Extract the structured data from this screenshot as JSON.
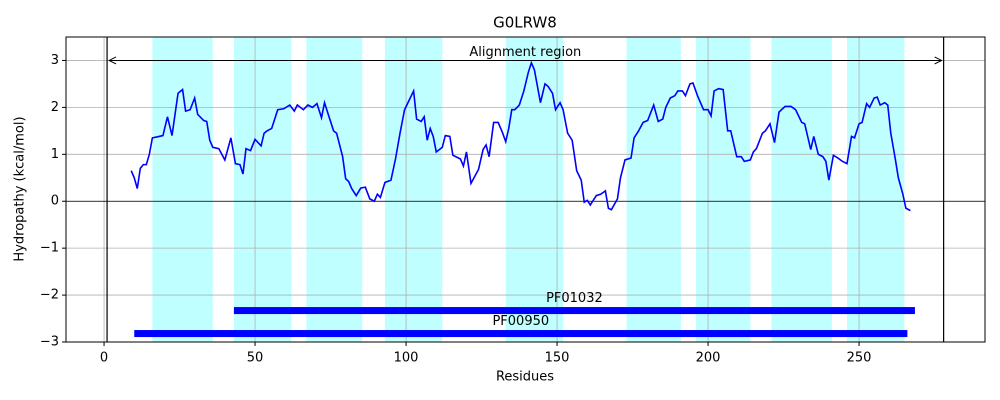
{
  "chart_data": {
    "type": "line",
    "title": "G0LRW8",
    "xlabel": "Residues",
    "ylabel": "Hydropathy (kcal/mol)",
    "color": "#0000ff",
    "region_color": "#bfffff",
    "grid": true,
    "xlim": [
      -12.6,
      291.7
    ],
    "ylim": [
      -3,
      3.5
    ],
    "xticks": [
      0,
      50,
      100,
      150,
      200,
      250
    ],
    "yticks": [
      {
        "value": -3,
        "label": "−3"
      },
      {
        "value": -2,
        "label": "−2"
      },
      {
        "value": -1,
        "label": "−1"
      },
      0,
      1,
      2,
      3
    ],
    "baseline": 0,
    "regions": [
      [
        16,
        36
      ],
      [
        43,
        62
      ],
      [
        67,
        85.5
      ],
      [
        93,
        112
      ],
      [
        133,
        152
      ],
      [
        173,
        191
      ],
      [
        196,
        214
      ],
      [
        221,
        241
      ],
      [
        246,
        265
      ]
    ],
    "alignment": {
      "label": "Alignment region",
      "start": 1,
      "end": 278,
      "y": 3
    },
    "domains": [
      {
        "name": "PF01032",
        "start": 43,
        "end": 268.5,
        "y": -2.33
      },
      {
        "name": "PF00950",
        "start": 10,
        "end": 266,
        "y": -2.82
      }
    ],
    "domain_color": "#0000ff",
    "x": [
      9,
      10,
      11,
      12,
      13,
      14,
      15,
      16,
      17.5,
      19.5,
      21,
      22.5,
      24.5,
      26,
      27,
      28.5,
      30,
      31,
      33,
      34,
      35,
      36,
      38,
      40,
      42,
      43.5,
      45,
      46,
      47,
      48.5,
      50,
      52,
      53,
      54,
      55.5,
      57.5,
      59.5,
      61.5,
      63,
      64,
      66,
      67.5,
      69,
      70.5,
      72,
      73,
      74,
      76,
      77,
      79,
      80,
      81,
      82,
      83.5,
      85,
      86.5,
      88,
      89.5,
      90.5,
      91.5,
      93,
      95,
      96.5,
      98,
      99.5,
      101,
      102.5,
      103.5,
      105,
      106,
      107,
      108,
      109,
      110,
      112,
      113,
      114.5,
      115.5,
      118,
      119,
      120,
      121.5,
      124,
      125.5,
      126.5,
      127.5,
      129,
      130.5,
      132,
      133,
      134,
      135,
      136,
      137.5,
      139,
      140.5,
      141.5,
      142.5,
      144.5,
      146,
      147,
      148.5,
      149.5,
      151,
      152,
      153.5,
      155,
      156.5,
      158,
      159,
      160,
      161,
      163,
      164.5,
      166,
      167,
      168,
      170,
      171,
      172.5,
      174.5,
      175.5,
      177,
      178.5,
      180,
      182,
      183.5,
      185,
      186,
      187.5,
      189,
      190,
      191.5,
      192.5,
      194,
      195,
      196.5,
      198.5,
      200,
      201,
      202,
      203.5,
      205,
      206.5,
      207.5,
      209.5,
      211,
      212,
      214,
      215,
      216,
      218,
      219,
      220.5,
      222,
      223.5,
      225.5,
      227.5,
      229,
      231,
      232,
      234,
      235,
      236.5,
      238,
      239,
      240,
      241.5,
      243,
      244.5,
      246,
      247.5,
      248.5,
      250,
      251,
      252.5,
      253.5,
      255,
      256,
      257,
      258.5,
      259.5,
      260.5,
      262,
      263,
      264.5,
      265.5,
      267
    ],
    "values": [
      0.65,
      0.5,
      0.27,
      0.7,
      0.78,
      0.78,
      1.0,
      1.35,
      1.37,
      1.4,
      1.8,
      1.4,
      2.3,
      2.38,
      1.92,
      1.95,
      2.2,
      1.85,
      1.72,
      1.7,
      1.3,
      1.15,
      1.12,
      0.88,
      1.35,
      0.8,
      0.78,
      0.58,
      1.12,
      1.08,
      1.32,
      1.18,
      1.45,
      1.5,
      1.55,
      1.95,
      1.97,
      2.05,
      1.92,
      2.05,
      1.95,
      2.05,
      2.0,
      2.08,
      1.78,
      2.1,
      1.9,
      1.5,
      1.45,
      0.95,
      0.48,
      0.42,
      0.27,
      0.12,
      0.28,
      0.3,
      0.05,
      0,
      0.15,
      0.08,
      0.4,
      0.45,
      0.9,
      1.45,
      1.95,
      2.15,
      2.35,
      1.75,
      1.7,
      1.8,
      1.3,
      1.55,
      1.38,
      1.05,
      1.15,
      1.4,
      1.38,
      0.98,
      0.9,
      0.75,
      1.05,
      0.38,
      0.68,
      1.1,
      1.2,
      0.95,
      1.68,
      1.68,
      1.45,
      1.27,
      1.55,
      1.95,
      1.95,
      2.05,
      2.35,
      2.75,
      2.95,
      2.8,
      2.1,
      2.5,
      2.45,
      2.3,
      1.95,
      2.1,
      1.95,
      1.45,
      1.3,
      0.65,
      0.45,
      -0.02,
      0.02,
      -0.08,
      0.12,
      0.15,
      0.22,
      -0.15,
      -0.18,
      0.05,
      0.5,
      0.88,
      0.92,
      1.35,
      1.5,
      1.68,
      1.72,
      2.05,
      1.7,
      1.75,
      2.0,
      2.2,
      2.25,
      2.35,
      2.35,
      2.25,
      2.5,
      2.52,
      2.25,
      1.95,
      1.95,
      1.82,
      2.35,
      2.4,
      2.38,
      1.5,
      1.5,
      0.95,
      0.95,
      0.85,
      0.88,
      1.05,
      1.12,
      1.45,
      1.5,
      1.65,
      1.25,
      1.9,
      2.02,
      2.02,
      1.95,
      1.68,
      1.65,
      1.1,
      1.38,
      1.0,
      0.95,
      0.85,
      0.45,
      0.98,
      0.92,
      0.85,
      0.8,
      1.38,
      1.35,
      1.65,
      1.68,
      2.08,
      2.0,
      2.2,
      2.22,
      2.05,
      2.1,
      2.05,
      1.45,
      0.9,
      0.5,
      0.15,
      -0.15,
      -0.2
    ]
  }
}
